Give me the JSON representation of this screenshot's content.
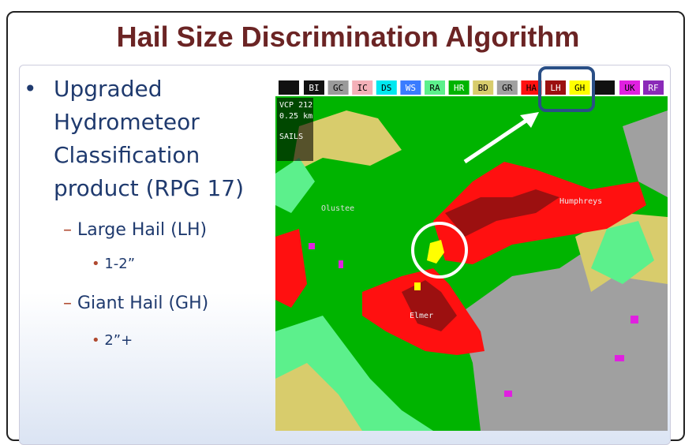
{
  "title": "Hail Size Discrimination Algorithm",
  "bullets": {
    "main": "Upgraded Hydrometeor Classification product (RPG 17)",
    "sub": [
      {
        "text": "Large Hail (LH)",
        "detail": "1-2”"
      },
      {
        "text": "Giant Hail (GH)",
        "detail": "2”+"
      }
    ]
  },
  "radar": {
    "legend": [
      {
        "code": "BI",
        "color": "#111111"
      },
      {
        "code": "GC",
        "color": "#9a9a9a"
      },
      {
        "code": "IC",
        "color": "#f4b0b8"
      },
      {
        "code": "DS",
        "color": "#00e8f0"
      },
      {
        "code": "WS",
        "color": "#3a7cff"
      },
      {
        "code": "RA",
        "color": "#5cf08c"
      },
      {
        "code": "HR",
        "color": "#00b400"
      },
      {
        "code": "BD",
        "color": "#d8cc6c"
      },
      {
        "code": "GR",
        "color": "#a0a0a0"
      },
      {
        "code": "HA",
        "color": "#ff1010"
      },
      {
        "code": "LH",
        "color": "#9c1010"
      },
      {
        "code": "GH",
        "color": "#ffff00"
      }
    ],
    "legend_right": [
      {
        "code": "UK",
        "color": "#e020e0"
      },
      {
        "code": "RF",
        "color": "#8a2ab8"
      }
    ],
    "info": [
      "VCP 212",
      "0.25 km",
      "SAILS"
    ],
    "places": [
      "Olustee",
      "Humphreys",
      "Elmer"
    ]
  }
}
